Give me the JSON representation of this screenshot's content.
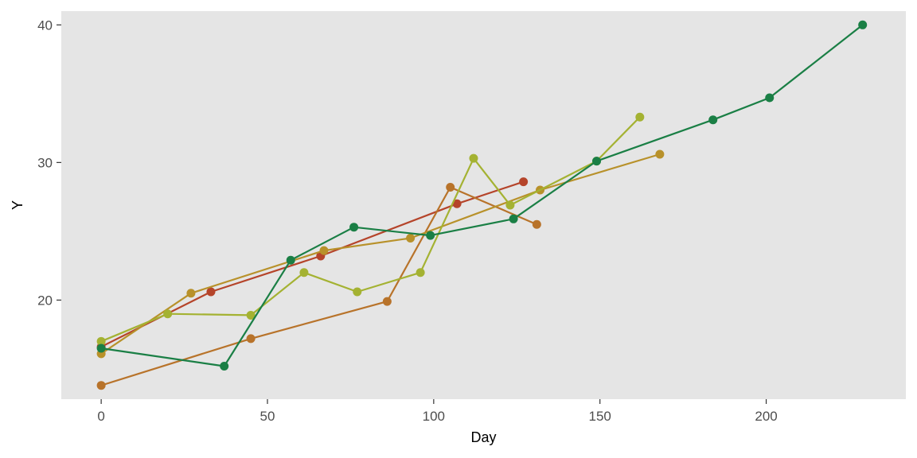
{
  "chart_data": {
    "type": "line",
    "xlabel": "Day",
    "ylabel": "Y",
    "xlim": [
      -12,
      242
    ],
    "ylim": [
      12.8,
      41.0
    ],
    "xticks": [
      0,
      50,
      100,
      150,
      200
    ],
    "yticks": [
      20,
      30,
      40
    ],
    "grid": false,
    "legend": "none",
    "background": "#e5e5e5",
    "series": [
      {
        "color": "#b5442a",
        "x": [
          0,
          33,
          66,
          107,
          127
        ],
        "y": [
          16.6,
          20.6,
          23.2,
          27.0,
          28.6
        ]
      },
      {
        "color": "#b8732a",
        "x": [
          0,
          45,
          86,
          105,
          131
        ],
        "y": [
          13.8,
          17.2,
          19.9,
          28.2,
          25.5
        ]
      },
      {
        "color": "#b8912a",
        "x": [
          0,
          27,
          67,
          93,
          132,
          168
        ],
        "y": [
          16.1,
          20.5,
          23.6,
          24.5,
          28.0,
          30.6
        ]
      },
      {
        "color": "#a4b232",
        "x": [
          0,
          20,
          45,
          61,
          77,
          96,
          112,
          123,
          149,
          162
        ],
        "y": [
          17.0,
          19.0,
          18.9,
          22.0,
          20.6,
          22.0,
          30.3,
          26.9,
          30.1,
          33.3
        ]
      },
      {
        "color": "#1a7f45",
        "x": [
          0,
          37,
          57,
          76,
          99,
          124,
          149,
          184,
          201,
          229
        ],
        "y": [
          16.5,
          15.2,
          22.9,
          25.3,
          24.7,
          25.9,
          30.1,
          33.1,
          34.7,
          40.0
        ]
      }
    ]
  }
}
